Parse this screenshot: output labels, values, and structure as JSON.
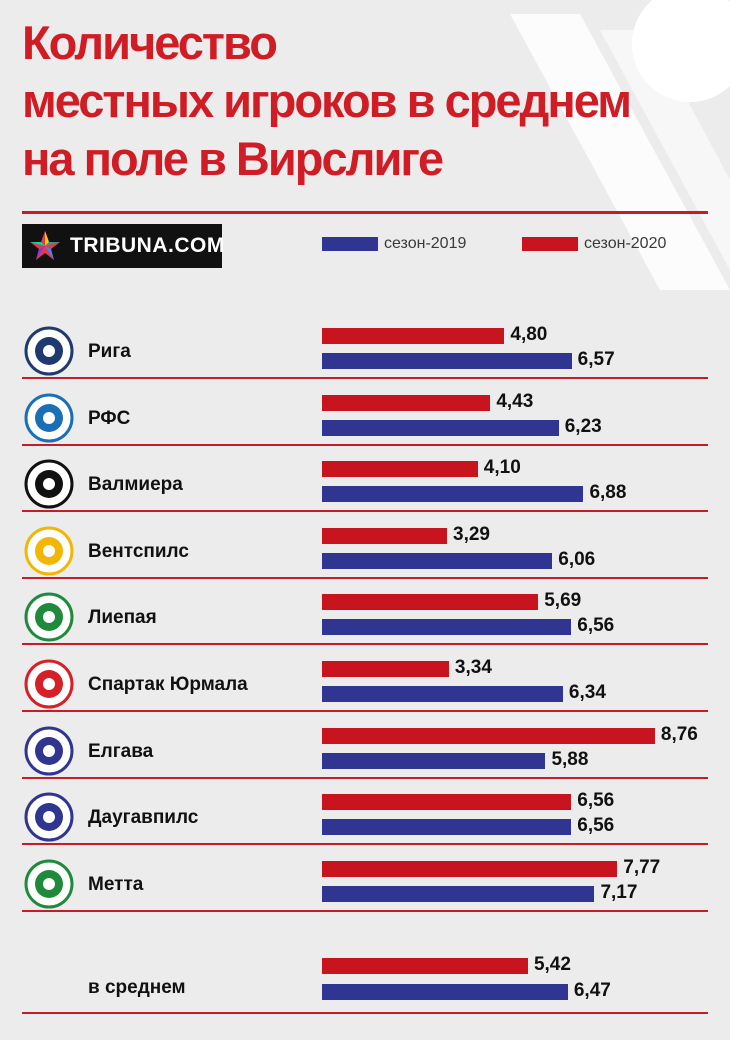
{
  "title_lines": [
    "Количество",
    "местных игроков в среднем",
    "на поле в Вирслиге"
  ],
  "brand": {
    "logo_text": "TRIBUNA.COM"
  },
  "colors": {
    "season_2019": "#2f3591",
    "season_2020": "#c8141e",
    "accent": "#d01c24"
  },
  "chart_data": {
    "type": "bar",
    "orientation": "horizontal",
    "title": "Количество местных игроков в среднем на поле в Вирслиге",
    "categories": [
      "Рига",
      "РФС",
      "Валмиера",
      "Вентспилс",
      "Лиепая",
      "Спартак Юрмала",
      "Елгава",
      "Даугавпилс",
      "Метта"
    ],
    "series": [
      {
        "name": "сезон-2020",
        "values": [
          4.8,
          4.43,
          4.1,
          3.29,
          5.69,
          3.34,
          8.76,
          6.56,
          7.77
        ],
        "labels": [
          "4,80",
          "4,43",
          "4,10",
          "3,29",
          "5,69",
          "3,34",
          "8,76",
          "6,56",
          "7,77"
        ]
      },
      {
        "name": "сезон-2019",
        "values": [
          6.57,
          6.23,
          6.88,
          6.06,
          6.56,
          6.34,
          5.88,
          6.56,
          7.17
        ],
        "labels": [
          "6,57",
          "6,23",
          "6,88",
          "6,06",
          "6,56",
          "6,34",
          "5,88",
          "6,56",
          "7,17"
        ]
      }
    ],
    "average": {
      "label": "в среднем",
      "value_2020": 5.42,
      "label_2020": "5,42",
      "value_2019": 6.47,
      "label_2019": "6,47"
    },
    "legend": {
      "placement": "top-right",
      "items": [
        {
          "name": "сезон-2019",
          "color": "#2f3591"
        },
        {
          "name": "сезон-2020",
          "color": "#c8141e"
        }
      ]
    },
    "xlim": [
      0,
      10
    ],
    "grid": false
  }
}
